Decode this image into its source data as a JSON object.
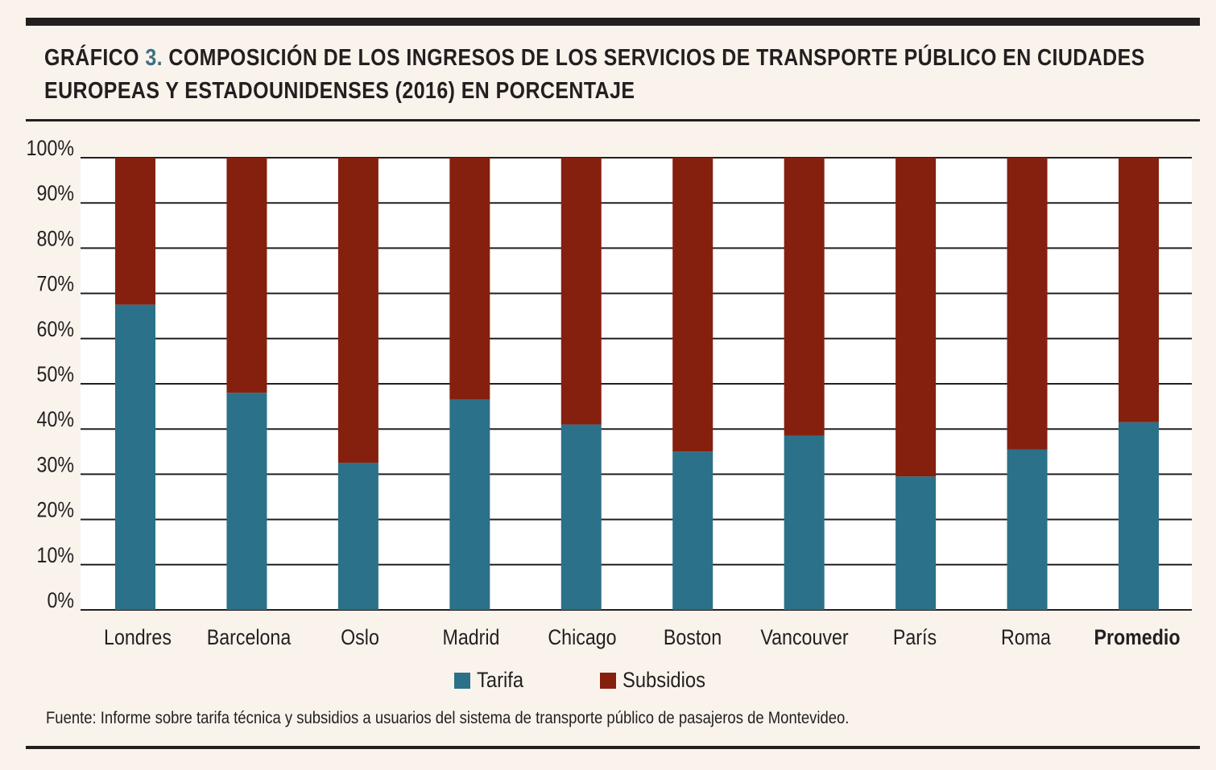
{
  "header": {
    "title_prefix": "GRÁFICO",
    "title_number": "3.",
    "title_line1": "COMPOSICIÓN DE LOS INGRESOS DE LOS SERVICIOS DE TRANSPORTE PÚBLICO EN CIUDADES",
    "title_line2": "EUROPEAS Y ESTADOUNIDENSES (2016) EN PORCENTAJE"
  },
  "colors": {
    "tarifa": "#2b7189",
    "subsidios": "#85200f",
    "grid": "#231f20",
    "plot_bg": "#ffffff"
  },
  "legend": [
    {
      "label": "Tarifa",
      "color": "#2b7189"
    },
    {
      "label": "Subsidios",
      "color": "#85200f"
    }
  ],
  "source": "Fuente: Informe sobre tarifa técnica y subsidios a usuarios del sistema de transporte público de pasajeros de Montevideo.",
  "chart_data": {
    "type": "bar",
    "stacked": true,
    "categories": [
      "Londres",
      "Barcelona",
      "Oslo",
      "Madrid",
      "Chicago",
      "Boston",
      "Vancouver",
      "París",
      "Roma",
      "Promedio"
    ],
    "bold_categories": [
      "Promedio"
    ],
    "series": [
      {
        "name": "Tarifa",
        "values": [
          67.5,
          48,
          32.5,
          46.5,
          41,
          35,
          38.5,
          29.5,
          35.5,
          41.5
        ]
      },
      {
        "name": "Subsidios",
        "values": [
          32.5,
          52,
          67.5,
          53.5,
          59,
          65,
          61.5,
          70.5,
          64.5,
          58.5
        ]
      }
    ],
    "yticks": [
      "0%",
      "10%",
      "20%",
      "30%",
      "40%",
      "50%",
      "60%",
      "70%",
      "80%",
      "90%",
      "100%"
    ],
    "ylim": [
      0,
      100
    ],
    "grid": true,
    "legend_position": "bottom"
  }
}
